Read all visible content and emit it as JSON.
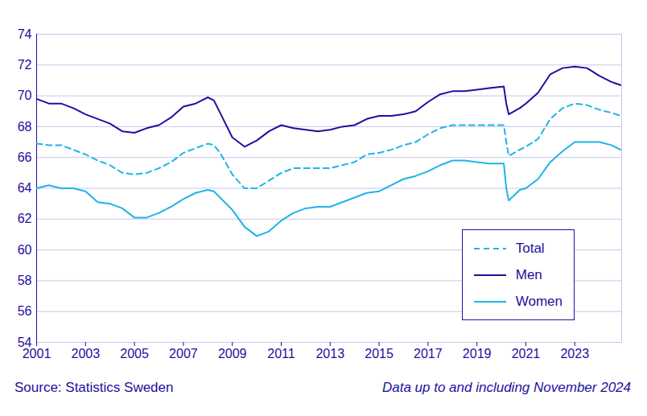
{
  "chart_data": {
    "type": "line",
    "source": "Source: Statistics Sweden",
    "note": "Data up to and including November 2024",
    "x": [
      2001,
      2001.5,
      2002,
      2002.5,
      2003,
      2003.5,
      2004,
      2004.5,
      2005,
      2005.5,
      2006,
      2006.5,
      2007,
      2007.5,
      2008,
      2008.25,
      2008.5,
      2009,
      2009.5,
      2010,
      2010.5,
      2011,
      2011.5,
      2012,
      2012.5,
      2013,
      2013.5,
      2014,
      2014.5,
      2015,
      2015.5,
      2016,
      2016.5,
      2017,
      2017.5,
      2018,
      2018.5,
      2019,
      2019.5,
      2020.1,
      2020.2,
      2020.3,
      2020.75,
      2021,
      2021.5,
      2022,
      2022.5,
      2023,
      2023.5,
      2024,
      2024.5,
      2024.875
    ],
    "series": [
      {
        "name": "Total",
        "color": "#1eb4e6",
        "line_style": "dashed",
        "values": [
          66.9,
          66.8,
          66.8,
          66.5,
          66.2,
          65.8,
          65.5,
          65.0,
          64.9,
          65.0,
          65.3,
          65.7,
          66.3,
          66.6,
          66.9,
          66.8,
          66.3,
          64.9,
          64.0,
          64.0,
          64.5,
          65.0,
          65.3,
          65.3,
          65.3,
          65.3,
          65.5,
          65.7,
          66.2,
          66.3,
          66.5,
          66.8,
          67.0,
          67.5,
          67.9,
          68.1,
          68.1,
          68.1,
          68.1,
          68.1,
          67.0,
          66.1,
          66.5,
          66.7,
          67.2,
          68.5,
          69.2,
          69.5,
          69.4,
          69.1,
          68.9,
          68.7
        ]
      },
      {
        "name": "Men",
        "color": "#1e0fa0",
        "line_style": "solid",
        "values": [
          69.8,
          69.5,
          69.5,
          69.2,
          68.8,
          68.5,
          68.2,
          67.7,
          67.6,
          67.9,
          68.1,
          68.6,
          69.3,
          69.5,
          69.9,
          69.7,
          68.9,
          67.3,
          66.7,
          67.1,
          67.7,
          68.1,
          67.9,
          67.8,
          67.7,
          67.8,
          68.0,
          68.1,
          68.5,
          68.7,
          68.7,
          68.8,
          69.0,
          69.6,
          70.1,
          70.3,
          70.3,
          70.4,
          70.5,
          70.6,
          69.5,
          68.8,
          69.2,
          69.5,
          70.2,
          71.4,
          71.8,
          71.9,
          71.8,
          71.3,
          70.9,
          70.7
        ]
      },
      {
        "name": "Women",
        "color": "#1eb4e6",
        "line_style": "solid",
        "values": [
          64.0,
          64.2,
          64.0,
          64.0,
          63.8,
          63.1,
          63.0,
          62.7,
          62.1,
          62.1,
          62.4,
          62.8,
          63.3,
          63.7,
          63.9,
          63.8,
          63.4,
          62.6,
          61.5,
          60.9,
          61.2,
          61.9,
          62.4,
          62.7,
          62.8,
          62.8,
          63.1,
          63.4,
          63.7,
          63.8,
          64.2,
          64.6,
          64.8,
          65.1,
          65.5,
          65.8,
          65.8,
          65.7,
          65.6,
          65.6,
          64.0,
          63.2,
          63.9,
          64.0,
          64.6,
          65.7,
          66.4,
          67.0,
          67.0,
          67.0,
          66.8,
          66.5
        ]
      }
    ],
    "xlim": [
      2001,
      2024.917
    ],
    "xticks": [
      2001,
      2003,
      2005,
      2007,
      2009,
      2011,
      2013,
      2015,
      2017,
      2019,
      2021,
      2023
    ],
    "ylim": [
      54,
      74
    ],
    "yticks": [
      54,
      56,
      58,
      60,
      62,
      64,
      66,
      68,
      70,
      72,
      74
    ],
    "grid": true,
    "legend": "bottom-right"
  }
}
